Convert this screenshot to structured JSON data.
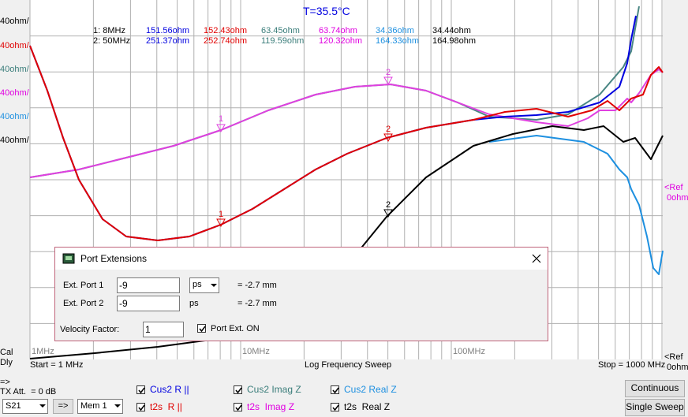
{
  "title": "T=35.5°C",
  "axis_labels": [
    "40ohm/",
    "40ohm/",
    "40ohm/",
    "40ohm/",
    "40ohm/",
    "40ohm/"
  ],
  "cal": "Cal",
  "dly": "Dly",
  "marker_table": {
    "rows": [
      [
        "1: 8MHz",
        "151.56ohm",
        "152.43ohm",
        "63.45ohm",
        "63.74ohm",
        "34.36ohm",
        "34.44ohm"
      ],
      [
        "2: 50MHz",
        "251.37ohm",
        "252.74ohm",
        "119.59ohm",
        "120.32ohm",
        "164.33ohm",
        "164.98ohm"
      ]
    ]
  },
  "trace_markers": [
    "1",
    "2",
    "1",
    "2",
    "2"
  ],
  "freq_labels": [
    "1MHz",
    "10MHz",
    "100MHz"
  ],
  "ref_labels": {
    "top": [
      "<Ref",
      "0ohm"
    ],
    "bottom": [
      "<Ref",
      "0ohm"
    ]
  },
  "footer": {
    "start": "Start = 1 MHz",
    "sweep": "Log Frequency Sweep",
    "stop": "Stop = 1000 MHz"
  },
  "controls": {
    "arrow": "=>",
    "tx_att": "TX Att.  = 0 dB",
    "param": "S21",
    "copy": "=>",
    "memory": "Mem 1",
    "checkboxes": [
      "Cus2 R ||",
      "t2s  R ||",
      "Cus2 Imag Z",
      "t2s  Imag Z",
      "Cus2 Real Z",
      "t2s  Real Z"
    ],
    "buttons": [
      "Continuous",
      "Single Sweep"
    ]
  },
  "dialog": {
    "title": "Port Extensions",
    "rows": [
      {
        "label": "Ext. Port 1",
        "value": "-9",
        "unit": "ps",
        "result": "= -2.7 mm"
      },
      {
        "label": "Ext. Port 2",
        "value": "-9",
        "unit": "ps",
        "result": "= -2.7 mm"
      }
    ],
    "velocity_label": "Velocity Factor:",
    "velocity_value": "1",
    "port_ext": "Port Ext. ON"
  }
}
